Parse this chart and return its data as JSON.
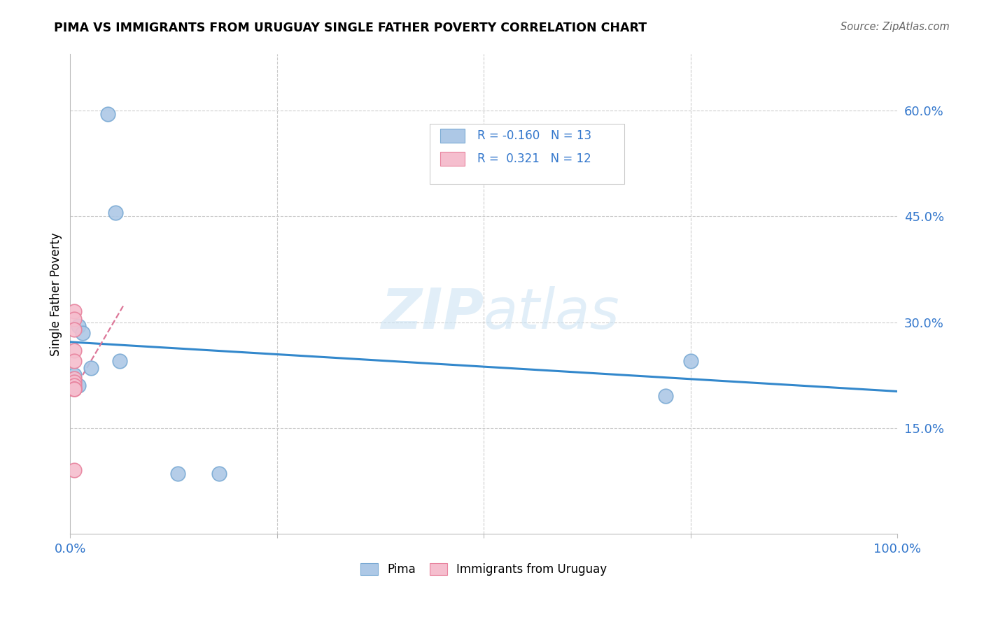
{
  "title": "PIMA VS IMMIGRANTS FROM URUGUAY SINGLE FATHER POVERTY CORRELATION CHART",
  "source": "Source: ZipAtlas.com",
  "ylabel": "Single Father Poverty",
  "xmin": 0.0,
  "xmax": 1.0,
  "ymin": 0.0,
  "ymax": 0.68,
  "pima_x": [
    0.045,
    0.055,
    0.01,
    0.015,
    0.025,
    0.005,
    0.005,
    0.01,
    0.06,
    0.18,
    0.75,
    0.72,
    0.13
  ],
  "pima_y": [
    0.595,
    0.455,
    0.295,
    0.285,
    0.235,
    0.225,
    0.215,
    0.21,
    0.245,
    0.085,
    0.245,
    0.195,
    0.085
  ],
  "uruguay_x": [
    0.005,
    0.005,
    0.005,
    0.005,
    0.005,
    0.005,
    0.005,
    0.005,
    0.005,
    0.005,
    0.005,
    0.005
  ],
  "uruguay_y": [
    0.315,
    0.305,
    0.29,
    0.26,
    0.245,
    0.22,
    0.215,
    0.21,
    0.205,
    0.205,
    0.205,
    0.09
  ],
  "pima_color": "#adc8e6",
  "pima_edge_color": "#7aaad4",
  "uruguay_color": "#f5bece",
  "uruguay_edge_color": "#e8839e",
  "blue_line_x": [
    0.0,
    1.0
  ],
  "blue_line_y": [
    0.272,
    0.202
  ],
  "pink_line_x": [
    0.0,
    0.065
  ],
  "pink_line_y": [
    0.195,
    0.325
  ],
  "pima_R": "-0.160",
  "pima_N": "13",
  "uruguay_R": "0.321",
  "uruguay_N": "12",
  "legend_label_pima": "Pima",
  "legend_label_uruguay": "Immigrants from Uruguay",
  "watermark_zip": "ZIP",
  "watermark_atlas": "atlas",
  "grid_color": "#cccccc",
  "ytick_positions": [
    0.15,
    0.3,
    0.45,
    0.6
  ],
  "xtick_positions": [
    0.0,
    0.25,
    0.5,
    0.75,
    1.0
  ]
}
